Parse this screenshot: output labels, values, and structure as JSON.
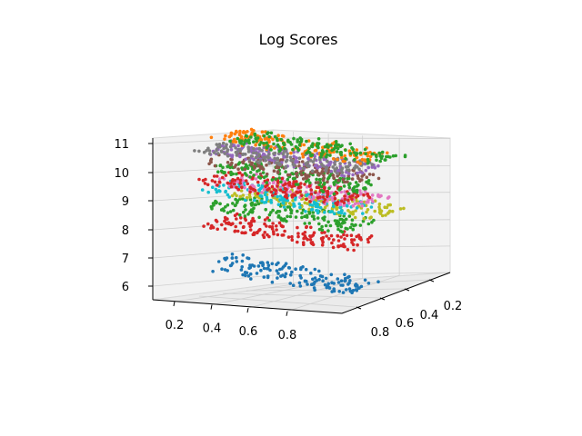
{
  "chart_data": {
    "type": "scatter",
    "title": "Log Scores",
    "xlabel": "",
    "ylabel": "",
    "zlabel": "",
    "x_ticks": [
      "0.2",
      "0.4",
      "0.6",
      "0.8"
    ],
    "y_ticks": [
      "0.8",
      "0.6",
      "0.4",
      "0.2"
    ],
    "z_ticks": [
      "6",
      "7",
      "8",
      "9",
      "10",
      "11"
    ],
    "xlim": [
      0.05,
      1.0
    ],
    "ylim": [
      0.05,
      1.0
    ],
    "zlim": [
      5.5,
      11.2
    ],
    "grid": true,
    "legend": "none",
    "series": [
      {
        "color": "#1f77b4",
        "z_at_x0": 6.35,
        "z_at_x1": 5.55,
        "y_center": 0.55
      },
      {
        "color": "#d62728",
        "z_at_x0": 7.9,
        "z_at_x1": 7.15,
        "y_center": 0.55
      },
      {
        "color": "#2ca02c",
        "z_at_x0": 8.6,
        "z_at_x1": 7.85,
        "y_center": 0.55
      },
      {
        "color": "#bcbd22",
        "z_at_x0": 8.7,
        "z_at_x1": 8.05,
        "y_center": 0.3
      },
      {
        "color": "#17becf",
        "z_at_x0": 9.2,
        "z_at_x1": 8.45,
        "y_center": 0.55
      },
      {
        "color": "#e377c2",
        "z_at_x0": 9.35,
        "z_at_x1": 8.7,
        "y_center": 0.45
      },
      {
        "color": "#d62728",
        "z_at_x0": 9.6,
        "z_at_x1": 8.95,
        "y_center": 0.6
      },
      {
        "color": "#2ca02c",
        "z_at_x0": 9.9,
        "z_at_x1": 9.2,
        "y_center": 0.5
      },
      {
        "color": "#8c564b",
        "z_at_x0": 10.25,
        "z_at_x1": 9.6,
        "y_center": 0.55
      },
      {
        "color": "#9467bd",
        "z_at_x0": 10.55,
        "z_at_x1": 9.9,
        "y_center": 0.5
      },
      {
        "color": "#7f7f7f",
        "z_at_x0": 10.7,
        "z_at_x1": 10.05,
        "y_center": 0.6
      },
      {
        "color": "#ff7f0e",
        "z_at_x0": 11.0,
        "z_at_x1": 10.3,
        "y_center": 0.45
      },
      {
        "color": "#2ca02c",
        "z_at_x0": 10.75,
        "z_at_x1": 10.1,
        "y_center": 0.3
      }
    ]
  }
}
